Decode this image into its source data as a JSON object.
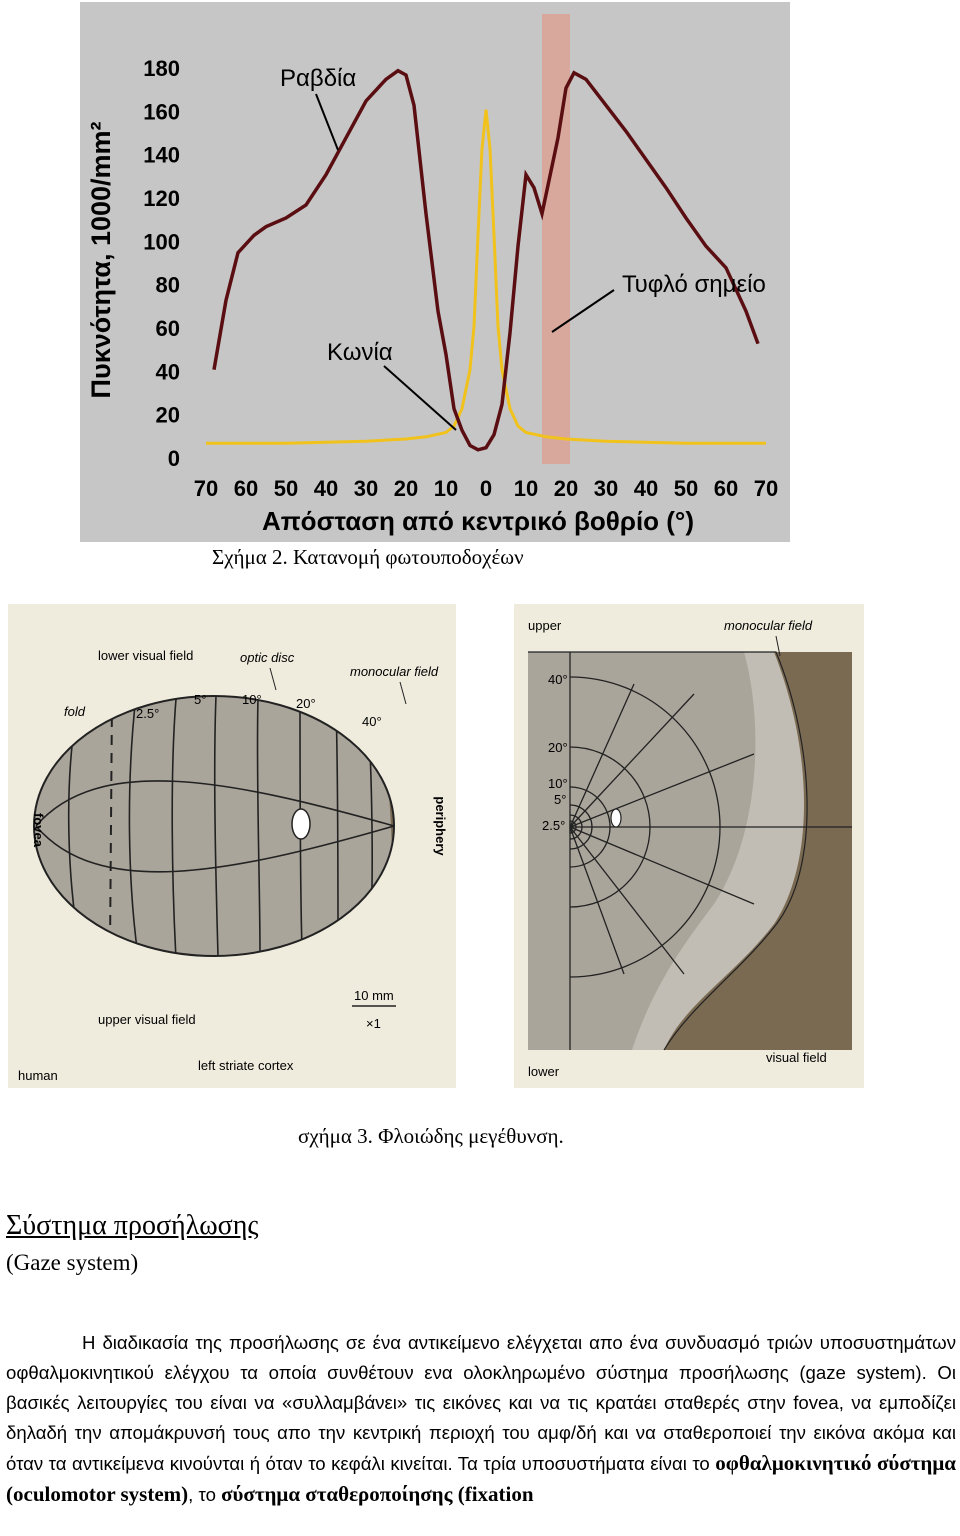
{
  "figure2": {
    "ylabel": "Πυκνότητα, 1000/mm²",
    "xlabel": "Απόσταση από κεντρικό βοθρίο (°)",
    "annotations": {
      "rods": "Ραβδία",
      "cones": "Κωνία",
      "blind_spot": "Τυφλό σημείο"
    },
    "caption": "Σχήμα 2. Κατανομή φωτουποδοχέων",
    "colors": {
      "background": "#c6c6c6",
      "rods": "#5a0e12",
      "cones": "#f1c21b",
      "blind_spot": "#d8a89c"
    },
    "chart_data": {
      "type": "line",
      "ylim": [
        0,
        180
      ],
      "xlim": [
        -70,
        70
      ],
      "y_ticks": [
        "0",
        "20",
        "40",
        "60",
        "80",
        "100",
        "120",
        "140",
        "160",
        "180"
      ],
      "x_ticks": [
        "70",
        "60",
        "50",
        "40",
        "30",
        "20",
        "10",
        "0",
        "10",
        "20",
        "30",
        "40",
        "50",
        "60",
        "70"
      ],
      "blind_spot_range": [
        15,
        20
      ],
      "series": [
        {
          "name": "Ραβδία",
          "x": [
            -68,
            -65,
            -62,
            -58,
            -55,
            -50,
            -45,
            -40,
            -35,
            -30,
            -25,
            -22,
            -20,
            -18,
            -15,
            -12,
            -10,
            -8,
            -6,
            -4,
            -2,
            0,
            2,
            4,
            6,
            8,
            10,
            12,
            14,
            16,
            18,
            20,
            22,
            25,
            30,
            35,
            40,
            45,
            50,
            55,
            60,
            65,
            68
          ],
          "values": [
            38,
            70,
            92,
            100,
            104,
            108,
            114,
            128,
            145,
            162,
            172,
            176,
            174,
            160,
            110,
            65,
            45,
            20,
            10,
            3,
            1,
            2,
            8,
            22,
            55,
            95,
            128,
            122,
            110,
            118,
            145,
            168,
            175,
            172,
            160,
            148,
            135,
            122,
            108,
            95,
            85,
            65,
            50
          ]
        },
        {
          "name": "Κωνία",
          "x": [
            -70,
            -50,
            -30,
            -20,
            -15,
            -10,
            -8,
            -6,
            -4,
            -3,
            -2,
            -1,
            0,
            1,
            2,
            3,
            4,
            6,
            8,
            10,
            15,
            20,
            30,
            50,
            70
          ],
          "values": [
            4,
            4,
            5,
            6,
            7,
            9,
            12,
            20,
            38,
            58,
            100,
            140,
            158,
            140,
            100,
            58,
            38,
            20,
            12,
            9,
            7,
            6,
            5,
            4,
            4
          ]
        }
      ]
    }
  },
  "figure3": {
    "left": {
      "labels": {
        "lower_visual_field": "lower visual field",
        "optic_disc": "optic disc",
        "monocular_field": "monocular field",
        "fold": "fold",
        "deg_2_5": "2.5°",
        "deg_5": "5°",
        "deg_10": "10°",
        "deg_20": "20°",
        "deg_40": "40°",
        "fovea": "fovea",
        "periphery": "periphery",
        "scale": "10 mm",
        "mult": "×1",
        "upper_visual_field": "upper visual field",
        "human": "human",
        "left_striate_cortex": "left striate cortex"
      }
    },
    "right": {
      "labels": {
        "upper": "upper",
        "monocular_field": "monocular field",
        "deg_40": "40°",
        "deg_20": "20°",
        "deg_10": "10°",
        "deg_5": "5°",
        "deg_2_5": "2.5°",
        "lower": "lower",
        "visual_field": "visual field"
      }
    },
    "colors": {
      "field": "#aaa59b",
      "dark": "#7b6a52",
      "panel": "#efecde"
    },
    "caption": "σχήμα 3. Φλοιώδης μεγέθυνση."
  },
  "section": {
    "heading": "Σύστημα προσήλωσης",
    "subheading": "(Gaze system)",
    "para_part1": "Η διαδικασία της προσήλωσης σε ένα αντικείμενο ελέγχεται απο ένα συνδυασμό τριών υποσυστημάτων οφθαλμοκινητικού ελέγχου τα οποία συνθέτουν ενα ολοκληρωμένο σύστημα προσήλωσης (gaze system). Οι βασικές λειτουργίες του είναι να «συλλαμβάνει» τις εικόνες και να τις κρατάει σταθερές στην fovea, να εμποδίζει δηλαδή την απομάκρυνσή τους απο την κεντρική περιοχή του αμφ/δή και να σταθεροποιεί την εικόνα ακόμα και όταν τα αντικείμενα κινούνται ή όταν το κεφάλι κινείται. Τα τρία υποσυστήματα είναι το ",
    "bold1": "οφθαλμοκινητικό σύστημα",
    "mid1": " (oculomotor system)",
    "mid2": ", το ",
    "bold2": "σύστημα σταθεροποίησης",
    "mid3": " (fixation"
  }
}
